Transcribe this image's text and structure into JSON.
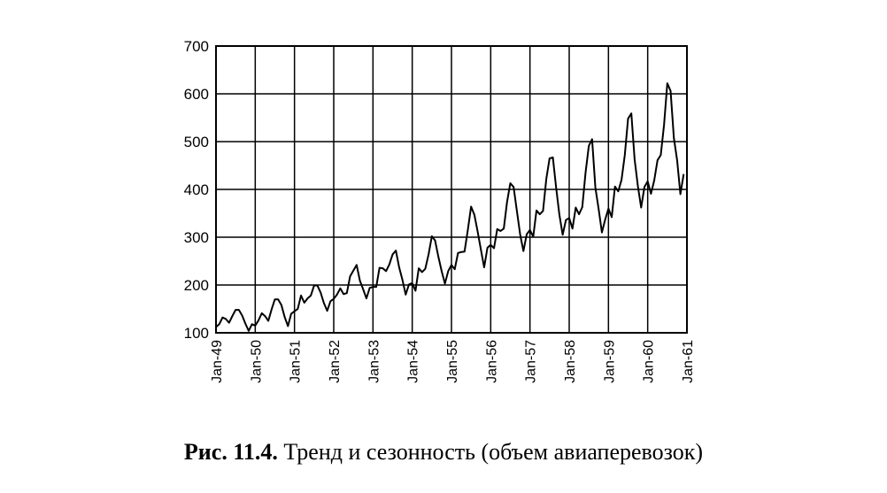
{
  "caption": {
    "label": "Рис. 11.4.",
    "text": "Тренд и сезонность (объем авиаперевозок)"
  },
  "chart_data": {
    "type": "line",
    "title": "",
    "xlabel": "",
    "ylabel": "",
    "ylim": [
      100,
      700
    ],
    "yticks": [
      100,
      200,
      300,
      400,
      500,
      600,
      700
    ],
    "xticks": [
      "Jan-49",
      "Jan-50",
      "Jan-51",
      "Jan-52",
      "Jan-53",
      "Jan-54",
      "Jan-55",
      "Jan-56",
      "Jan-57",
      "Jan-58",
      "Jan-59",
      "Jan-60",
      "Jan-61"
    ],
    "grid": true,
    "legend": "none",
    "series": [
      {
        "values": [
          112,
          118,
          132,
          129,
          121,
          135,
          148,
          148,
          136,
          119,
          104,
          118,
          115,
          126,
          141,
          135,
          125,
          149,
          170,
          170,
          158,
          133,
          114,
          140,
          145,
          150,
          178,
          163,
          172,
          178,
          199,
          199,
          184,
          162,
          146,
          166,
          171,
          180,
          193,
          181,
          183,
          218,
          230,
          242,
          209,
          191,
          172,
          194,
          196,
          196,
          236,
          235,
          229,
          243,
          264,
          272,
          237,
          211,
          180,
          201,
          204,
          188,
          235,
          227,
          234,
          264,
          302,
          293,
          259,
          229,
          203,
          229,
          242,
          233,
          267,
          269,
          270,
          315,
          364,
          347,
          312,
          274,
          237,
          278,
          284,
          277,
          317,
          313,
          318,
          374,
          413,
          405,
          355,
          306,
          271,
          306,
          315,
          301,
          356,
          348,
          355,
          422,
          465,
          467,
          404,
          347,
          305,
          336,
          340,
          318,
          362,
          348,
          363,
          435,
          491,
          505,
          404,
          359,
          310,
          337,
          360,
          342,
          406,
          396,
          420,
          472,
          548,
          559,
          463,
          407,
          362,
          405,
          417,
          391,
          419,
          461,
          472,
          535,
          622,
          606,
          508,
          461,
          390,
          432
        ]
      }
    ]
  }
}
